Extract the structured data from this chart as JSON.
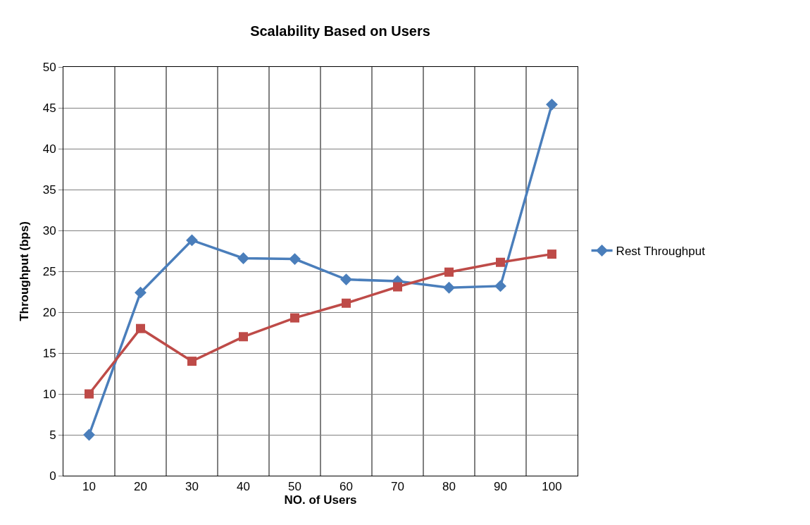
{
  "chart_data": {
    "type": "line",
    "title": "Scalability Based on Users",
    "xlabel": "NO. of Users",
    "ylabel": "Throughput (bps)",
    "categories": [
      "10",
      "20",
      "30",
      "40",
      "50",
      "60",
      "70",
      "80",
      "90",
      "100"
    ],
    "series": [
      {
        "name": "Rest Throughput",
        "color": "#4a7ebb",
        "marker": "diamond",
        "values": [
          5.0,
          22.4,
          28.8,
          26.6,
          26.5,
          24.0,
          23.8,
          23.0,
          23.2,
          45.4
        ]
      },
      {
        "color": "#be4b48",
        "marker": "square",
        "values": [
          10.0,
          18.0,
          14.0,
          17.0,
          19.3,
          21.1,
          23.1,
          24.9,
          26.1,
          27.1
        ]
      }
    ],
    "ylim": [
      0,
      50
    ],
    "yticks": [
      0,
      5,
      10,
      15,
      20,
      25,
      30,
      35,
      40,
      45,
      50
    ],
    "grid": true,
    "legend": "right",
    "line_style": "solid"
  }
}
